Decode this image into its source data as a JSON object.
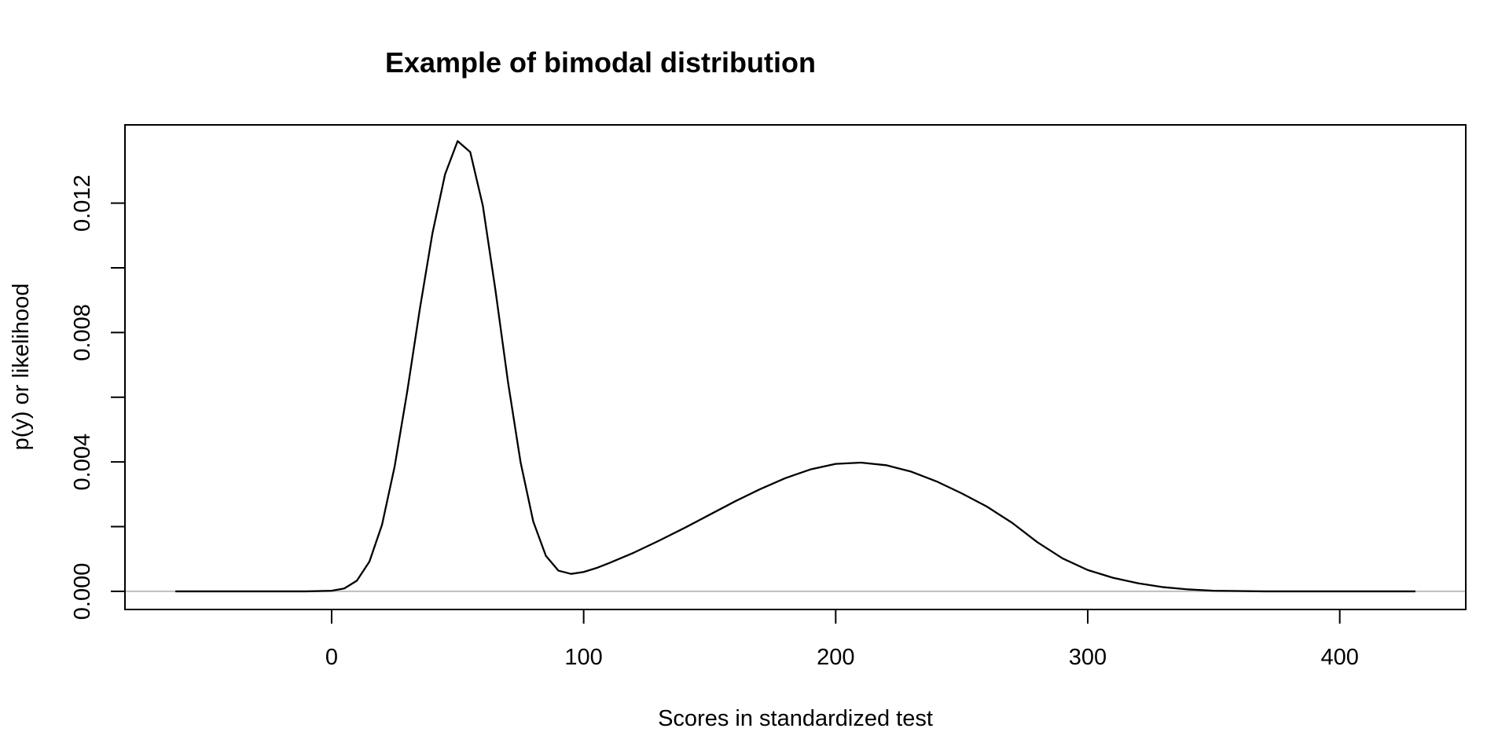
{
  "chart_data": {
    "type": "line",
    "title": "Example of bimodal distribution",
    "xlabel": "Scores in standardized test",
    "ylabel": "p(y) or likelihood",
    "xlim": [
      -82,
      450
    ],
    "ylim": [
      -0.00056,
      0.01442
    ],
    "x_ticks": [
      0,
      100,
      200,
      300,
      400
    ],
    "x_tick_labels": [
      "0",
      "100",
      "200",
      "300",
      "400"
    ],
    "y_ticks": [
      0.0,
      0.002,
      0.004,
      0.006,
      0.008,
      0.01,
      0.012
    ],
    "y_tick_labels": [
      "0.000",
      "",
      "0.004",
      "",
      "0.008",
      "",
      "0.012"
    ],
    "baseline": 0,
    "grid": false,
    "colors": {
      "line": "#000000",
      "baseline": "#bebebe",
      "box": "#000000"
    },
    "series": [
      {
        "x": [
          -62,
          -50,
          -40,
          -30,
          -20,
          -10,
          0,
          5,
          10,
          15,
          20,
          25,
          30,
          35,
          40,
          45,
          50,
          55,
          60,
          65,
          70,
          75,
          80,
          85,
          90,
          95,
          100,
          105,
          110,
          120,
          130,
          140,
          150,
          160,
          170,
          180,
          190,
          200,
          210,
          220,
          230,
          240,
          250,
          260,
          270,
          280,
          290,
          300,
          310,
          320,
          330,
          340,
          350,
          360,
          370,
          380,
          390,
          400,
          410,
          420,
          430
        ],
        "y": [
          0.0,
          0.0,
          0.0,
          0.0,
          0.0,
          0.0,
          2e-05,
          9e-05,
          0.00033,
          0.00092,
          0.00206,
          0.00386,
          0.00618,
          0.00873,
          0.01107,
          0.01289,
          0.01392,
          0.01358,
          0.01192,
          0.00931,
          0.00646,
          0.00398,
          0.00216,
          0.0011,
          0.00064,
          0.00054,
          0.0006,
          0.00072,
          0.00087,
          0.0012,
          0.00157,
          0.00196,
          0.00237,
          0.00278,
          0.00316,
          0.0035,
          0.00377,
          0.00394,
          0.00398,
          0.0039,
          0.0037,
          0.0034,
          0.00303,
          0.00262,
          0.00212,
          0.00152,
          0.00102,
          0.00066,
          0.00042,
          0.00025,
          0.00013,
          6e-05,
          2e-05,
          1e-05,
          0.0,
          0.0,
          0.0,
          0.0,
          0.0,
          0.0,
          0.0
        ]
      }
    ]
  }
}
